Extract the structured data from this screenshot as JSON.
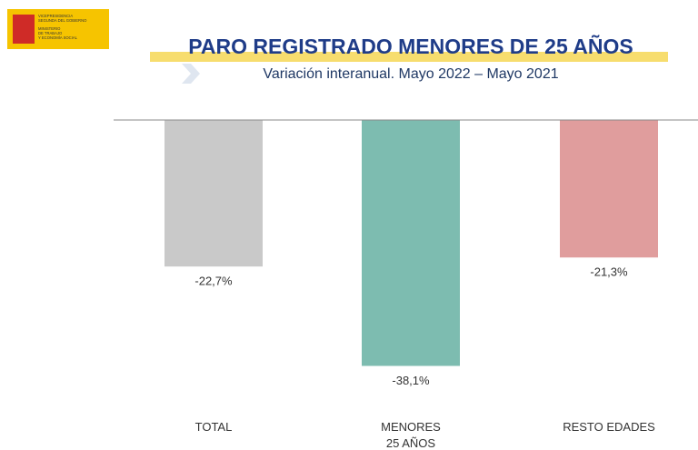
{
  "logo": {
    "lines": [
      "VICEPRESIDENCIA",
      "SEGUNDA DEL GOBIERNO",
      "MINISTERIO",
      "DE TRABAJO",
      "Y ECONOMÍA SOCIAL"
    ]
  },
  "chart_data": {
    "type": "bar",
    "title": "PARO REGISTRADO MENORES DE 25 AÑOS",
    "subtitle": "Variación interanual. Mayo 2022 – Mayo 2021",
    "categories": [
      "TOTAL",
      "MENORES 25 AÑOS",
      "RESTO EDADES"
    ],
    "values": [
      -22.7,
      -38.1,
      -21.3
    ],
    "value_labels": [
      "-22,7%",
      "-38,1%",
      "-21,3%"
    ],
    "colors": [
      "#c9c9c9",
      "#7dbcb0",
      "#e09d9d"
    ],
    "ylim": [
      -40,
      0
    ]
  }
}
